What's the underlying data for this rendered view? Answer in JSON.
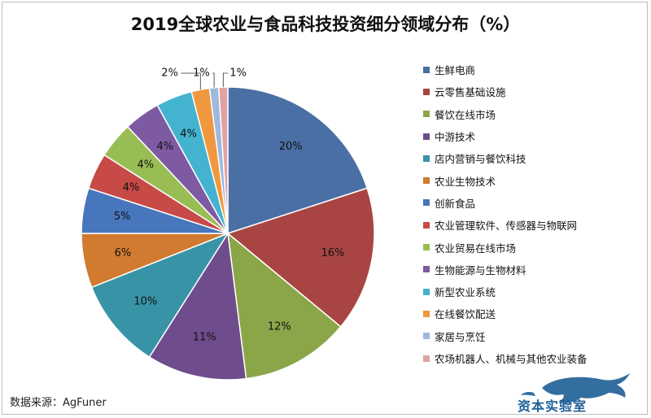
{
  "chart_data": {
    "type": "pie",
    "title": "2019全球农业与食品科技投资细分领域分布（%）",
    "unit": "%",
    "slices": [
      {
        "label": "生鲜电商",
        "value": 20,
        "display": "20%",
        "color": "#4a6fa5"
      },
      {
        "label": "云零售基础设施",
        "value": 16,
        "display": "16%",
        "color": "#a84543"
      },
      {
        "label": "餐饮在线市场",
        "value": 12,
        "display": "12%",
        "color": "#8aa648"
      },
      {
        "label": "中游技术",
        "value": 11,
        "display": "11%",
        "color": "#6f4c8c"
      },
      {
        "label": "店内营销与餐饮科技",
        "value": 10,
        "display": "10%",
        "color": "#3993a6"
      },
      {
        "label": "农业生物技术",
        "value": 6,
        "display": "6%",
        "color": "#d07b30"
      },
      {
        "label": "创新食品",
        "value": 5,
        "display": "5%",
        "color": "#4876bd"
      },
      {
        "label": "农业管理软件、传感器与物联网",
        "value": 4,
        "display": "4%",
        "color": "#c74a47"
      },
      {
        "label": "农业贸易在线市场",
        "value": 4,
        "display": "4%",
        "color": "#99bd55"
      },
      {
        "label": "生物能源与生物材料",
        "value": 4,
        "display": "4%",
        "color": "#7e5aa2"
      },
      {
        "label": "新型农业系统",
        "value": 4,
        "display": "4%",
        "color": "#44b3cf"
      },
      {
        "label": "在线餐饮配送",
        "value": 2,
        "display": "2%",
        "color": "#f0983e"
      },
      {
        "label": "家居与烹饪",
        "value": 1,
        "display": "1%",
        "color": "#9fb8dd"
      },
      {
        "label": "农场机器人、机械与其他农业装备",
        "value": 1,
        "display": "1%",
        "color": "#e0a3a2"
      }
    ],
    "legend_position": "right"
  },
  "source": "数据来源：AgFuner",
  "watermark": "资本实验室"
}
